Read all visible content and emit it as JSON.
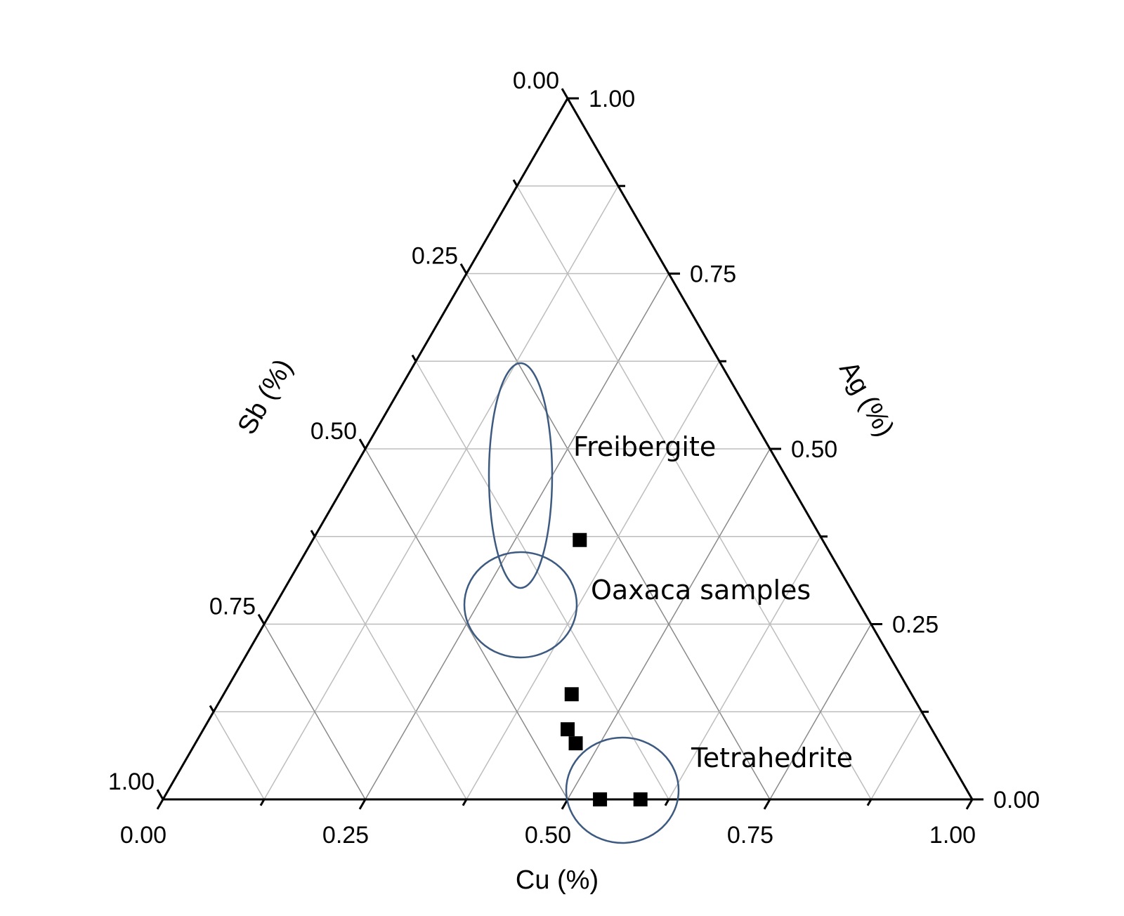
{
  "chart_data": {
    "type": "scatter",
    "subtype": "ternary",
    "axes": {
      "bottom": {
        "label": "Cu (%)",
        "ticks": [
          "0.00",
          "0.25",
          "0.50",
          "0.75",
          "1.00"
        ]
      },
      "left": {
        "label": "Sb (%)",
        "ticks": [
          "0.00",
          "0.25",
          "0.50",
          "0.75",
          "1.00"
        ]
      },
      "right": {
        "label": "Ag (%)",
        "ticks": [
          "1.00",
          "0.75",
          "0.50",
          "0.25",
          "0.00"
        ]
      }
    },
    "range": [
      0,
      1
    ],
    "grid": true,
    "points": [
      {
        "group": "Freibergite",
        "cu": 0.33,
        "sb": 0.3,
        "ag": 0.37
      },
      {
        "group": "Freibergite",
        "cu": 0.43,
        "sb": 0.42,
        "ag": 0.15
      },
      {
        "group": "Oaxaca samples",
        "cu": 0.45,
        "sb": 0.45,
        "ag": 0.1
      },
      {
        "group": "Oaxaca samples",
        "cu": 0.47,
        "sb": 0.45,
        "ag": 0.08
      },
      {
        "group": "Tetrahedrite",
        "cu": 0.54,
        "sb": 0.46,
        "ag": 0.0
      },
      {
        "group": "Tetrahedrite",
        "cu": 0.59,
        "sb": 0.41,
        "ag": 0.0
      }
    ],
    "annotations": [
      "Freibergite",
      "Oaxaca samples",
      "Tetrahedrite"
    ]
  }
}
